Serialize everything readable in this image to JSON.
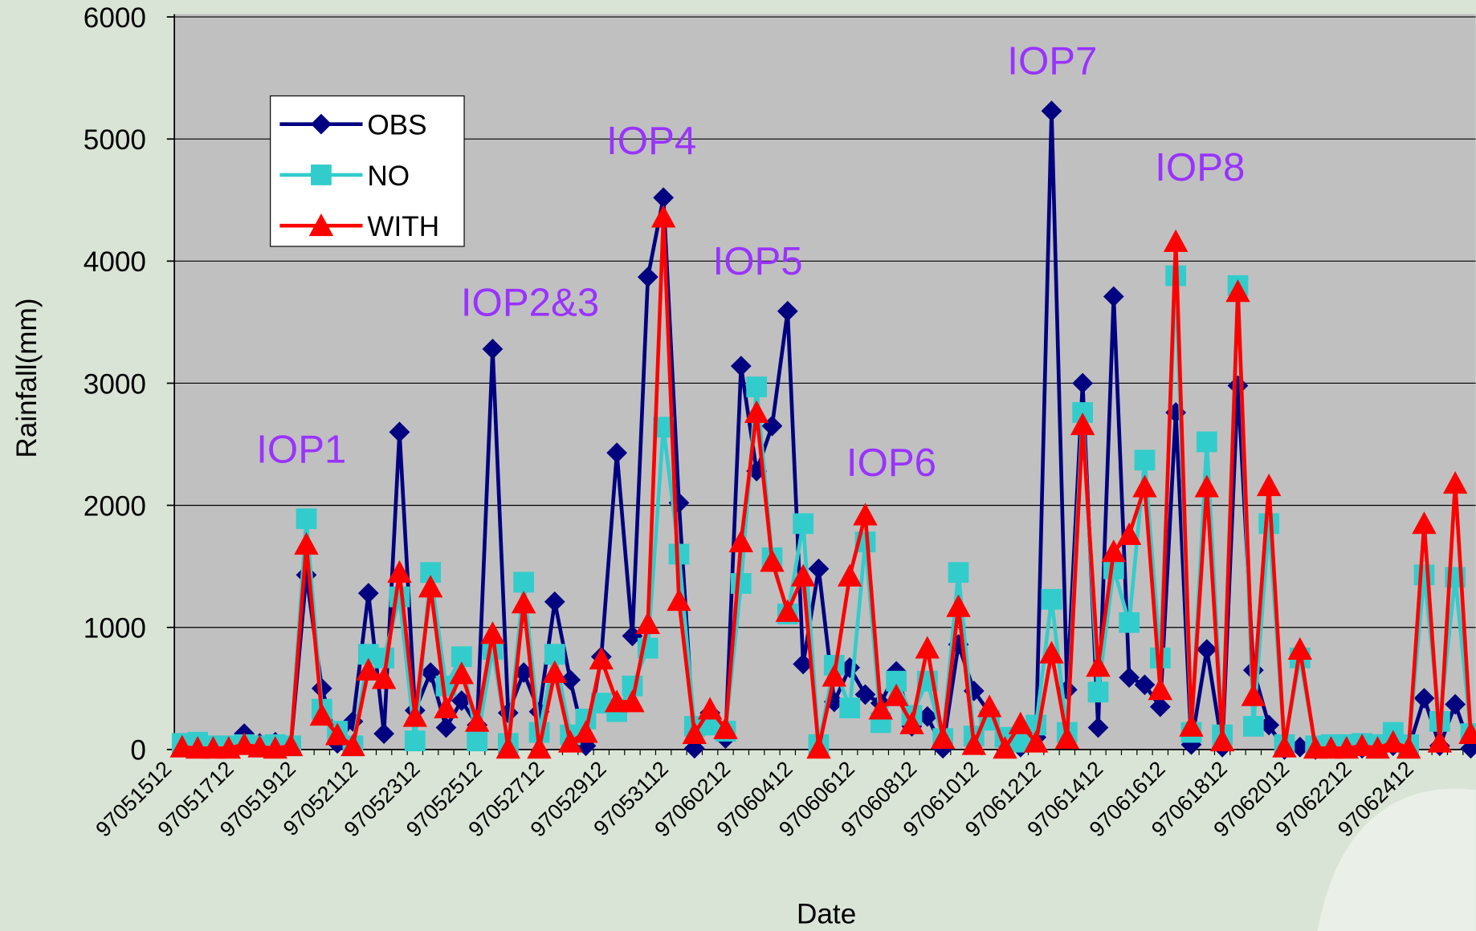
{
  "chart_data": {
    "type": "line",
    "y_label": "Rainfall(mm)",
    "x_label": "Date",
    "categories": [
      "97051512",
      null,
      null,
      null,
      "97051712",
      null,
      null,
      null,
      "97051912",
      null,
      null,
      null,
      "97052112",
      null,
      null,
      null,
      "97052312",
      null,
      null,
      null,
      "97052512",
      null,
      null,
      null,
      "97052712",
      null,
      null,
      null,
      "97052912",
      null,
      null,
      null,
      "97053112",
      null,
      null,
      null,
      "97060212",
      null,
      null,
      null,
      "97060412",
      null,
      null,
      null,
      "97060612",
      null,
      null,
      null,
      "97060812",
      null,
      null,
      null,
      "97061012",
      null,
      null,
      null,
      "97061212",
      null,
      null,
      null,
      "97061412",
      null,
      null,
      null,
      "97061612",
      null,
      null,
      null,
      "97061812",
      null,
      null,
      null,
      "97062012",
      null,
      null,
      null,
      "97062212",
      null,
      null,
      null,
      "97062412",
      null,
      null,
      null
    ],
    "series": [
      {
        "name": "OBS",
        "color": "#000080",
        "marker": "diamond",
        "values": [
          40,
          50,
          20,
          30,
          130,
          50,
          60,
          30,
          1430,
          500,
          50,
          230,
          1280,
          130,
          2600,
          320,
          630,
          180,
          400,
          200,
          3280,
          300,
          630,
          310,
          1210,
          570,
          30,
          760,
          2430,
          930,
          3870,
          4520,
          2020,
          10,
          300,
          90,
          3140,
          2280,
          2650,
          3590,
          700,
          1480,
          390,
          670,
          450,
          380,
          640,
          190,
          270,
          10,
          860,
          480,
          300,
          80,
          20,
          100,
          5230,
          490,
          3000,
          180,
          3710,
          590,
          530,
          350,
          2760,
          40,
          820,
          20,
          2980,
          650,
          200,
          0,
          20,
          0,
          10,
          20,
          10,
          10,
          30,
          10,
          420,
          30,
          370,
          10
        ]
      },
      {
        "name": "NO",
        "color": "#33cccc",
        "marker": "square",
        "values": [
          50,
          60,
          30,
          30,
          40,
          30,
          40,
          30,
          1890,
          330,
          150,
          30,
          780,
          750,
          1250,
          70,
          1450,
          520,
          760,
          70,
          820,
          50,
          1370,
          140,
          780,
          120,
          250,
          380,
          310,
          520,
          830,
          2640,
          1600,
          190,
          200,
          150,
          1360,
          2970,
          1570,
          1110,
          1850,
          40,
          690,
          340,
          1700,
          220,
          560,
          280,
          560,
          90,
          1450,
          110,
          240,
          100,
          60,
          200,
          1230,
          140,
          2760,
          470,
          1480,
          1040,
          2370,
          750,
          3880,
          140,
          2520,
          120,
          3800,
          190,
          1850,
          40,
          750,
          30,
          40,
          40,
          50,
          40,
          140,
          40,
          1430,
          230,
          1410,
          130
        ]
      },
      {
        "name": "WITH",
        "color": "#ff0000",
        "marker": "triangle",
        "values": [
          20,
          10,
          10,
          10,
          40,
          20,
          10,
          30,
          1680,
          280,
          120,
          30,
          650,
          580,
          1450,
          270,
          1330,
          340,
          620,
          230,
          950,
          10,
          1200,
          10,
          630,
          60,
          140,
          740,
          390,
          390,
          1030,
          4360,
          1220,
          130,
          330,
          170,
          1700,
          2760,
          1540,
          1130,
          1420,
          10,
          600,
          1420,
          1920,
          330,
          440,
          210,
          830,
          90,
          1170,
          40,
          350,
          10,
          210,
          60,
          790,
          90,
          2660,
          680,
          1620,
          1760,
          2150,
          490,
          4160,
          190,
          2150,
          70,
          3750,
          440,
          2160,
          20,
          820,
          10,
          10,
          10,
          30,
          10,
          60,
          10,
          1850,
          60,
          2180,
          130
        ]
      }
    ],
    "annotations": [
      "IOP1",
      "IOP2&3",
      "IOP4",
      "IOP5",
      "IOP6",
      "IOP7",
      "IOP8"
    ],
    "annotation_color": "#9933ff",
    "ylim": [
      0,
      6000
    ],
    "yticks": [
      0,
      1000,
      2000,
      3000,
      4000,
      5000,
      6000
    ],
    "grid": true,
    "legend": "upper-left",
    "plot_color": "#c0c0c0"
  }
}
